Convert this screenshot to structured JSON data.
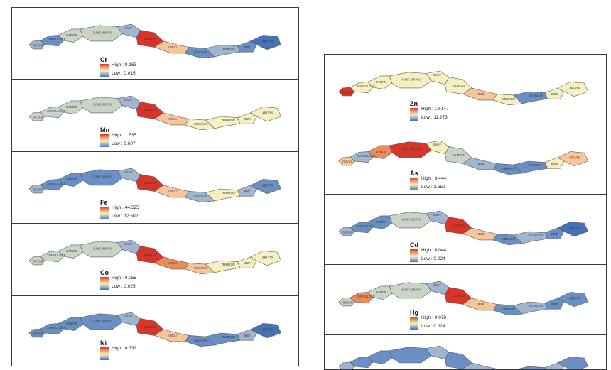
{
  "panels_left": [
    {
      "element": "Cr",
      "high": "High : 0.163",
      "low": "Low : 0.015",
      "labels": [
        "DÜZCE",
        "ZONGULDAK",
        "BARTIN",
        "KASTAMONU",
        "SİNOP",
        "SAMSUN",
        "ORDU",
        "GİRESUN",
        "TRABZON",
        "RİZE",
        "ARTVİN"
      ]
    },
    {
      "element": "Mn",
      "high": "High : 1.535",
      "low": "Low : 0.607",
      "labels": [
        "DÜZCE",
        "ZONGULDAK",
        "BARTIN",
        "KASTAMONU",
        "SİNOP",
        "SAMSUN",
        "ORDU",
        "GİRESUN",
        "TRABZON",
        "RİZE",
        "ARTVİN"
      ]
    },
    {
      "element": "Fe",
      "high": "High : 44.525",
      "low": "Low : 12.502",
      "labels": [
        "DÜZCE",
        "ZONGULDAK",
        "BARTIN",
        "KASTAMONU",
        "SİNOP",
        "SAMSUN",
        "ORDU",
        "GİRESUN",
        "TRABZON",
        "RİZE",
        "ARTVİN"
      ]
    },
    {
      "element": "Co",
      "high": "High : 0.055",
      "low": "Low : 0.025",
      "labels": [
        "DÜZCE",
        "ZONGULDAK",
        "BARTIN",
        "KASTAMONU",
        "SİNOP",
        "SAMSUN",
        "ORDU",
        "GİRESUN",
        "TRABZON",
        "RİZE",
        "ARTVİN"
      ]
    },
    {
      "element": "Ni",
      "high": "High : 0.332",
      "low": "",
      "labels": [
        "DÜZCE",
        "ZONGULDAK",
        "BARTIN",
        "KASTAMONU",
        "SİNOP",
        "SAMSUN",
        "ORDU",
        "GİRESUN",
        "TRABZON",
        "RİZE",
        "ARTVİN"
      ]
    }
  ],
  "panels_right": [
    {
      "element": "Zn",
      "high": "High : 18.147",
      "low": "Low : 11.273",
      "labels": [
        "DÜZCE",
        "ZONGULDAK",
        "BARTIN",
        "KASTAMONU",
        "SİNOP",
        "SAMSUN",
        "ORDU",
        "GİRESUN",
        "TRABZON",
        "RİZE",
        "ARTVİN"
      ]
    },
    {
      "element": "As",
      "high": "High : 3.444",
      "low": "Low : 1.652",
      "labels": [
        "DÜZCE",
        "ZONGULDAK",
        "BARTIN",
        "KASTAMONU",
        "SİNOP",
        "SAMSUN",
        "ORDU",
        "GİRESUN",
        "TRABZON",
        "RİZE",
        "ARTVİN"
      ]
    },
    {
      "element": "Cd",
      "high": "High : 0.044",
      "low": "Low : 0.024",
      "labels": [
        "DÜZCE",
        "ZONGULDAK",
        "BARTIN",
        "KASTAMONU",
        "SİNOP",
        "SAMSUN",
        "ORDU",
        "GİRESUN",
        "TRABZON",
        "RİZE",
        "ARTVİN"
      ]
    },
    {
      "element": "Hg",
      "high": "High : 0.078",
      "low": "Low : 0.024",
      "labels": [
        "DÜZCE",
        "ZONGULDAK",
        "BARTIN",
        "KASTAMONU",
        "SİNOP",
        "SAMSUN",
        "ORDU",
        "GİRESUN",
        "TRABZON",
        "RİZE",
        "ARTVİN"
      ]
    },
    {
      "element": "",
      "high": "",
      "low": "",
      "labels": []
    }
  ],
  "colors": {
    "high": "#d9342a",
    "mid": "#f6efc0",
    "low": "#4573b7",
    "border": "#3a3a3a"
  }
}
